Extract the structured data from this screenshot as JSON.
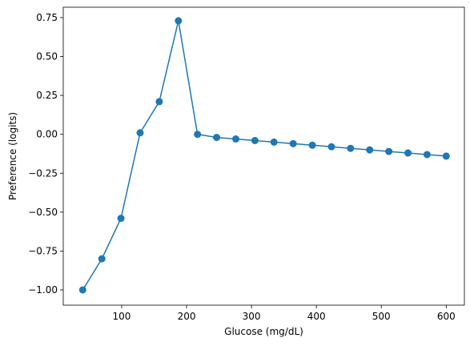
{
  "chart_data": {
    "type": "line",
    "x_label": "Glucose (mg/dL)",
    "y_label": "Preference (logits)",
    "x": [
      40,
      69.5,
      98.9,
      128.4,
      157.9,
      187.4,
      216.8,
      246.3,
      275.8,
      305.3,
      334.7,
      364.2,
      393.7,
      423.2,
      452.6,
      482.1,
      511.6,
      541.1,
      570.5,
      600
    ],
    "series": [
      {
        "color": "#1f77b4",
        "values": [
          -1.0,
          -0.8,
          -0.54,
          0.01,
          0.21,
          0.73,
          0.0,
          -0.02,
          -0.03,
          -0.04,
          -0.05,
          -0.06,
          -0.07,
          -0.08,
          -0.09,
          -0.1,
          -0.11,
          -0.12,
          -0.13,
          -0.14
        ]
      }
    ],
    "xlim": [
      10,
      628
    ],
    "ylim": [
      -1.098,
      0.817
    ],
    "xticks": [
      100,
      200,
      300,
      400,
      500,
      600
    ],
    "yticks": [
      {
        "value": 0.75,
        "label": "0.75"
      },
      {
        "value": 0.5,
        "label": "0.50"
      },
      {
        "value": 0.25,
        "label": "0.25"
      },
      {
        "value": 0,
        "label": "0.00"
      },
      {
        "value": -0.25,
        "label": "−0.25"
      },
      {
        "value": -0.5,
        "label": "−0.50"
      },
      {
        "value": -0.75,
        "label": "−0.75"
      },
      {
        "value": -1,
        "label": "−1.00"
      }
    ],
    "grid": false,
    "markers": true
  }
}
